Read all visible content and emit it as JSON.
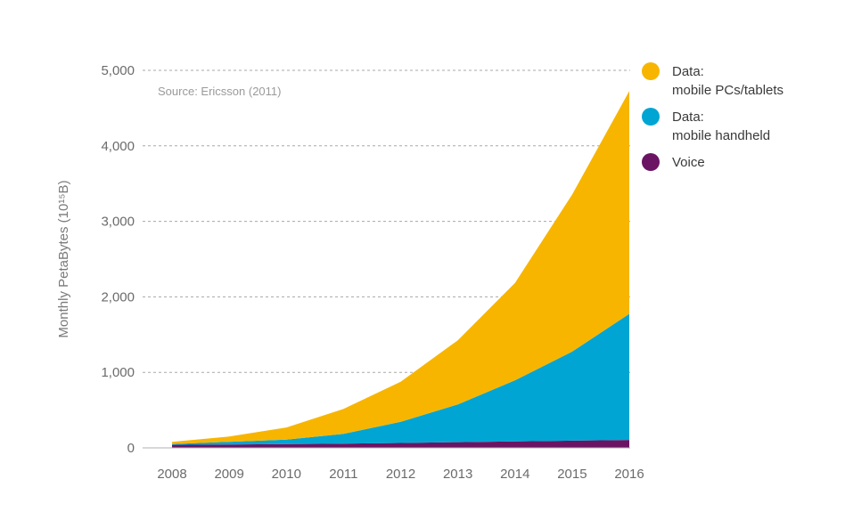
{
  "chart_data": {
    "type": "area",
    "stacked": true,
    "title": "",
    "source_note": "Source: Ericsson (2011)",
    "xlabel": "",
    "ylabel": "Monthly PetaBytes (10¹⁵B)",
    "x": [
      "2008",
      "2009",
      "2010",
      "2011",
      "2012",
      "2013",
      "2014",
      "2015",
      "2016"
    ],
    "ylim": [
      0,
      5000
    ],
    "yticks": [
      0,
      1000,
      2000,
      3000,
      4000,
      5000
    ],
    "ytick_labels": [
      "0",
      "1,000",
      "2,000",
      "3,000",
      "4,000",
      "5,000"
    ],
    "grid": true,
    "legend_position": "right",
    "series": [
      {
        "name": "Voice",
        "color": "#6b1463",
        "values": [
          40,
          45,
          50,
          55,
          65,
          75,
          85,
          95,
          105
        ]
      },
      {
        "name": "Data: mobile handheld",
        "legend_lines": [
          "Data:",
          "mobile handheld"
        ],
        "color": "#00a5d3",
        "values": [
          10,
          35,
          60,
          130,
          280,
          500,
          810,
          1180,
          1670
        ]
      },
      {
        "name": "Data: mobile PCs/tablets",
        "legend_lines": [
          "Data:",
          "mobile PCs/tablets"
        ],
        "color": "#f7b500",
        "values": [
          30,
          70,
          160,
          330,
          530,
          850,
          1290,
          2080,
          2950
        ]
      }
    ],
    "legend_order": [
      2,
      1,
      0
    ]
  }
}
